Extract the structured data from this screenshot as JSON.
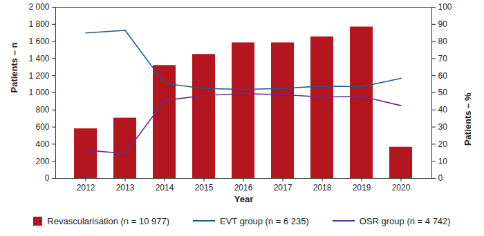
{
  "chart_data": {
    "type": "bar",
    "x_label": "Year",
    "y_label": "Patients – n",
    "y2_label": "Patients – %",
    "categories": [
      "2012",
      "2013",
      "2014",
      "2015",
      "2016",
      "2017",
      "2018",
      "2019",
      "2020"
    ],
    "series": [
      {
        "name": "Revascularisation (n = 10 977)",
        "type": "bar",
        "color": "#b3161f",
        "values": [
          580,
          705,
          1320,
          1450,
          1585,
          1585,
          1655,
          1770,
          365
        ]
      },
      {
        "name": "EVT group (n = 6 235)",
        "type": "line",
        "axis": "y2",
        "color": "#1d5a8a",
        "values": [
          85,
          86.5,
          55.5,
          52.5,
          52,
          52.5,
          54,
          53.5,
          58.5
        ]
      },
      {
        "name": "OSR group (n = 4 742)",
        "type": "line",
        "axis": "y2",
        "color": "#6b2d8c",
        "values": [
          16.5,
          14.5,
          45.5,
          48.5,
          49.5,
          49,
          47.5,
          48,
          42.5
        ]
      }
    ],
    "ylim": [
      0,
      2000
    ],
    "yticks": [
      0,
      200,
      400,
      600,
      800,
      {
        "value": 1000,
        "label": "1 000"
      },
      {
        "value": 1200,
        "label": "1 200"
      },
      {
        "value": 1400,
        "label": "1 400"
      },
      {
        "value": 1600,
        "label": "1 600"
      },
      {
        "value": 1800,
        "label": "1 800"
      },
      {
        "value": 2000,
        "label": "2 000"
      }
    ],
    "y2lim": [
      0,
      100
    ],
    "y2ticks": [
      0,
      10,
      20,
      30,
      40,
      50,
      60,
      70,
      80,
      90,
      100
    ],
    "grid": false,
    "legend": "bottom"
  }
}
